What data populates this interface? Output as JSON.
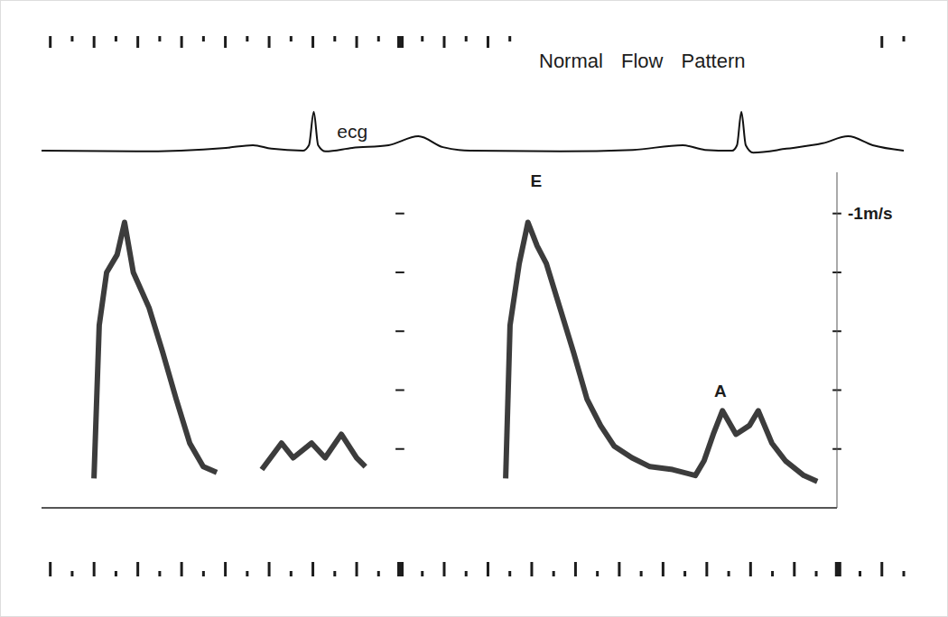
{
  "chart_data": [
    {
      "type": "line",
      "title": "Normal Flow Pattern",
      "x": [
        0.18,
        0.395,
        0.601,
        0.663,
        0.705,
        0.777,
        0.791,
        0.802,
        0.812,
        0.829,
        0.89,
        0.973,
        1.041,
        1.097,
        1.159,
        1.366,
        1.531,
        1.645,
        1.696,
        1.758,
        1.769,
        1.779,
        1.789,
        1.806,
        1.882,
        1.965,
        2.023,
        2.079,
        2.15
      ],
      "values": [
        0,
        -0.02,
        0.07,
        0.14,
        0.05,
        0,
        0.14,
        1.0,
        0.14,
        -0.02,
        0.07,
        0.14,
        0.37,
        0.09,
        0,
        -0.02,
        0.02,
        0.14,
        0.02,
        0,
        0.14,
        1.0,
        0.14,
        -0.05,
        0.05,
        0.19,
        0.37,
        0.14,
        0
      ],
      "color": "#111111",
      "xlim": [
        0.18,
        2.15
      ],
      "xticks": [
        0.2,
        0.25,
        0.3,
        0.35,
        0.4,
        0.45,
        0.5,
        0.55,
        0.6,
        0.65,
        0.7,
        0.75,
        0.8,
        0.85,
        0.9,
        0.95,
        1,
        1.05,
        1.1,
        1.15,
        1.2,
        1.25,
        1.3,
        1.35,
        1.4,
        1.45,
        1.5,
        1.55,
        1.6,
        1.65,
        1.7,
        1.75,
        1.8,
        1.85,
        1.9,
        1.95,
        2,
        2.05,
        2.1,
        2.15
      ],
      "ylim": [
        -10.6,
        2.65
      ],
      "tick_labels": false,
      "grid": false,
      "annotations": [
        {
          "text": "ecg",
          "x": 0.89,
          "y": 0.49
        }
      ]
    },
    {
      "type": "line",
      "x": [
        0.3,
        0.312,
        0.329,
        0.353,
        0.37,
        0.39,
        0.426,
        0.457,
        0.488,
        0.519,
        0.55,
        0.581,
        0.63,
        0.684,
        0.729,
        0.756,
        0.798,
        0.829,
        0.866,
        0.901,
        0.921,
        1.08,
        1.242,
        1.252,
        1.273,
        1.293,
        1.314,
        1.335,
        1.366,
        1.397,
        1.428,
        1.459,
        1.49,
        1.531,
        1.572,
        1.624,
        1.676,
        1.696,
        1.717,
        1.738,
        1.769,
        1.8,
        1.82,
        1.851,
        1.882,
        1.924,
        1.955
      ],
      "values": [
        -0.1,
        -0.62,
        -0.8,
        -0.86,
        -0.97,
        -0.8,
        -0.68,
        -0.53,
        -0.37,
        -0.22,
        -0.14,
        -0.12,
        null,
        -0.13,
        -0.22,
        -0.17,
        -0.22,
        -0.17,
        -0.25,
        -0.17,
        -0.14,
        null,
        -0.1,
        -0.62,
        -0.83,
        -0.97,
        -0.89,
        -0.83,
        -0.68,
        -0.53,
        -0.37,
        -0.28,
        -0.21,
        -0.17,
        -0.14,
        -0.13,
        -0.11,
        -0.16,
        -0.25,
        -0.33,
        -0.25,
        -0.28,
        -0.33,
        -0.22,
        -0.16,
        -0.11,
        -0.09
      ],
      "color": "#1a1a1a",
      "xlim": [
        0.18,
        2.0
      ],
      "xticks": [
        1,
        2
      ],
      "ylim": [
        0,
        -1.14
      ],
      "yticks": [
        {
          "value": -1,
          "label": "-1m/s"
        },
        {
          "value": -0.8,
          "label": null
        },
        {
          "value": -0.6,
          "label": null
        },
        {
          "value": -0.4,
          "label": null
        },
        {
          "value": -0.2,
          "label": null
        }
      ],
      "tick_labels": "y",
      "grid": false,
      "annotations": [
        {
          "text": "E",
          "x": 1.312,
          "y": -1.113
        },
        {
          "text": "A",
          "x": 1.733,
          "y": -0.398
        }
      ]
    }
  ]
}
